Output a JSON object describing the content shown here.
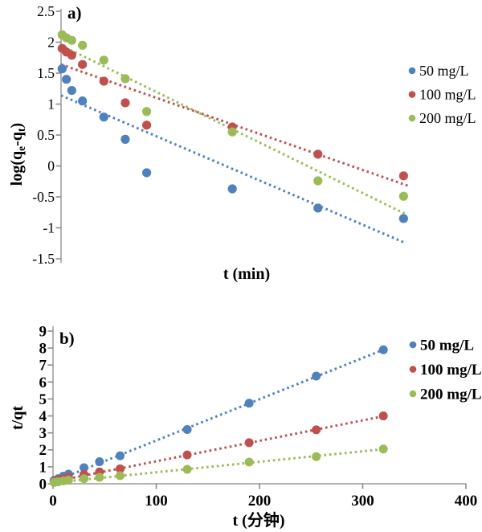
{
  "figure": {
    "background": "#ffffff",
    "axis_color": "#b3b3b3",
    "tick_color": "#8c8c8c"
  },
  "chart_data": [
    {
      "id": "a",
      "type": "scatter",
      "panel_label": "a)",
      "xlabel": "t (min)",
      "ylabel": "log(qe-qt)",
      "ylabel_parts": [
        {
          "text": "log(q"
        },
        {
          "text": "e",
          "sub": true
        },
        {
          "text": "-q"
        },
        {
          "text": "t",
          "sub": true
        },
        {
          "text": ")"
        }
      ],
      "xlim": [
        0,
        352
      ],
      "ylim": [
        -1.5,
        2.5
      ],
      "y_ticks": [
        2.5,
        2,
        1.5,
        1,
        0.5,
        0,
        -0.5,
        -1,
        -1.5
      ],
      "x_ticks": [],
      "grid": false,
      "legend_position": "right",
      "x": [
        1,
        5,
        10,
        20,
        40,
        60,
        80,
        160,
        240,
        320
      ],
      "series": [
        {
          "name": "50 mg/L",
          "color": "#4F81BD",
          "values": [
            1.57,
            1.4,
            1.22,
            1.05,
            0.79,
            0.43,
            -0.11,
            -0.37,
            -0.68,
            -0.85
          ],
          "trend": {
            "x0": 0,
            "y0": 1.14,
            "x1": 321,
            "y1": -1.24
          }
        },
        {
          "name": "100 mg/L",
          "color": "#C0504D",
          "values": [
            1.9,
            1.84,
            1.79,
            1.64,
            1.37,
            1.02,
            0.66,
            0.63,
            0.19,
            -0.16
          ],
          "trend": {
            "x0": 0,
            "y0": 1.64,
            "x1": 324,
            "y1": -0.32
          }
        },
        {
          "name": "200 mg/L",
          "color": "#9BBB59",
          "values": [
            2.12,
            2.07,
            2.03,
            1.95,
            1.71,
            1.41,
            0.88,
            0.55,
            -0.24,
            -0.49
          ],
          "trend": {
            "x0": 0,
            "y0": 1.95,
            "x1": 321,
            "y1": -0.77
          }
        }
      ]
    },
    {
      "id": "b",
      "type": "scatter",
      "panel_label": "b)",
      "xlabel": "t (分钟)",
      "ylabel": "t/qt",
      "xlim": [
        0,
        400
      ],
      "ylim": [
        0,
        9
      ],
      "y_ticks": [
        9,
        8,
        7,
        6,
        5,
        4,
        3,
        2,
        1,
        0
      ],
      "x_ticks": [
        0,
        100,
        200,
        300,
        400
      ],
      "grid": false,
      "legend_position": "right",
      "x": [
        1,
        5,
        10,
        15,
        30,
        45,
        65,
        130,
        190,
        255,
        320
      ],
      "series": [
        {
          "name": "50 mg/L",
          "color": "#4F81BD",
          "values": [
            0.2,
            0.3,
            0.45,
            0.57,
            0.95,
            1.3,
            1.65,
            3.2,
            4.75,
            6.35,
            7.9
          ],
          "trend": {
            "x0": 0,
            "y0": 0.12,
            "x1": 320,
            "y1": 7.9
          }
        },
        {
          "name": "100 mg/L",
          "color": "#C0504D",
          "values": [
            0.15,
            0.22,
            0.3,
            0.38,
            0.55,
            0.7,
            0.88,
            1.7,
            2.42,
            3.18,
            4.0
          ],
          "trend": {
            "x0": 0,
            "y0": 0.12,
            "x1": 320,
            "y1": 3.98
          }
        },
        {
          "name": "200 mg/L",
          "color": "#9BBB59",
          "values": [
            0.08,
            0.12,
            0.17,
            0.22,
            0.3,
            0.38,
            0.48,
            0.85,
            1.28,
            1.6,
            2.05
          ],
          "trend": {
            "x0": 0,
            "y0": 0.06,
            "x1": 320,
            "y1": 2.04
          }
        }
      ]
    }
  ]
}
